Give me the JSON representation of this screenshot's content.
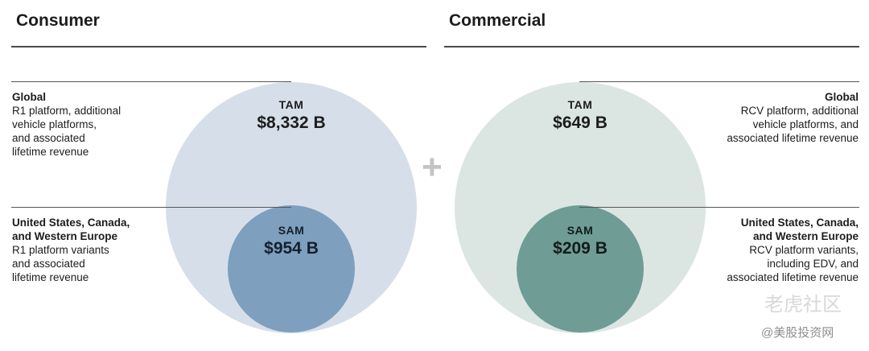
{
  "consumer": {
    "title": "Consumer",
    "global": {
      "head": "Global",
      "body": "R1 platform, additional\nvehicle platforms,\nand associated\nlifetime revenue"
    },
    "regional": {
      "head": "United States, Canada,\nand Western Europe",
      "body": "R1 platform variants\nand associated\nlifetime revenue"
    },
    "tam": {
      "label": "TAM",
      "value": "$8,332 B"
    },
    "sam": {
      "label": "SAM",
      "value": "$954 B"
    }
  },
  "commercial": {
    "title": "Commercial",
    "global": {
      "head": "Global",
      "body": "RCV platform, additional\nvehicle platforms, and\nassociated lifetime revenue"
    },
    "regional": {
      "head": "United States, Canada,\nand Western Europe",
      "body": "RCV platform variants,\nincluding EDV, and\nassociated lifetime revenue"
    },
    "tam": {
      "label": "TAM",
      "value": "$649 B"
    },
    "sam": {
      "label": "SAM",
      "value": "$209 B"
    }
  },
  "plus_symbol": "+",
  "watermark": {
    "main": "老虎社区",
    "sub": "@美股投资网"
  },
  "colors": {
    "consumer_tam": "#d6dfe9",
    "consumer_sam": "#7e9fbe",
    "commercial_tam": "#dbe6e2",
    "commercial_sam": "#6f9c94"
  }
}
